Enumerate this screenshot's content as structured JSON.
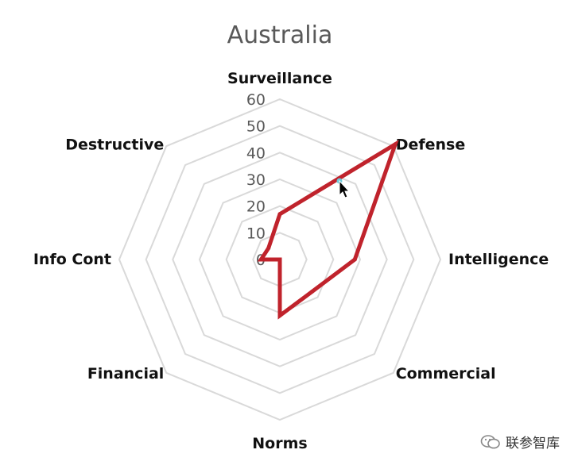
{
  "chart_data": {
    "type": "radar",
    "title": "Australia",
    "categories": [
      "Surveillance",
      "Defense",
      "Intelligence",
      "Commercial",
      "Norms",
      "Financial",
      "Info Cont",
      "Destructive"
    ],
    "series": [
      {
        "values": [
          17,
          61,
          28,
          17,
          21,
          0,
          7,
          6
        ],
        "color": "#c0232c"
      }
    ],
    "ticks": [
      0,
      10,
      20,
      30,
      40,
      50,
      60
    ],
    "rlim": [
      0,
      60
    ],
    "grid": true,
    "legend": "none"
  },
  "watermark": {
    "text": "联参智库",
    "icon": "wechat-icon"
  },
  "colors": {
    "grid": "#d9d9d9",
    "series": "#c0232c",
    "title": "#595959"
  }
}
